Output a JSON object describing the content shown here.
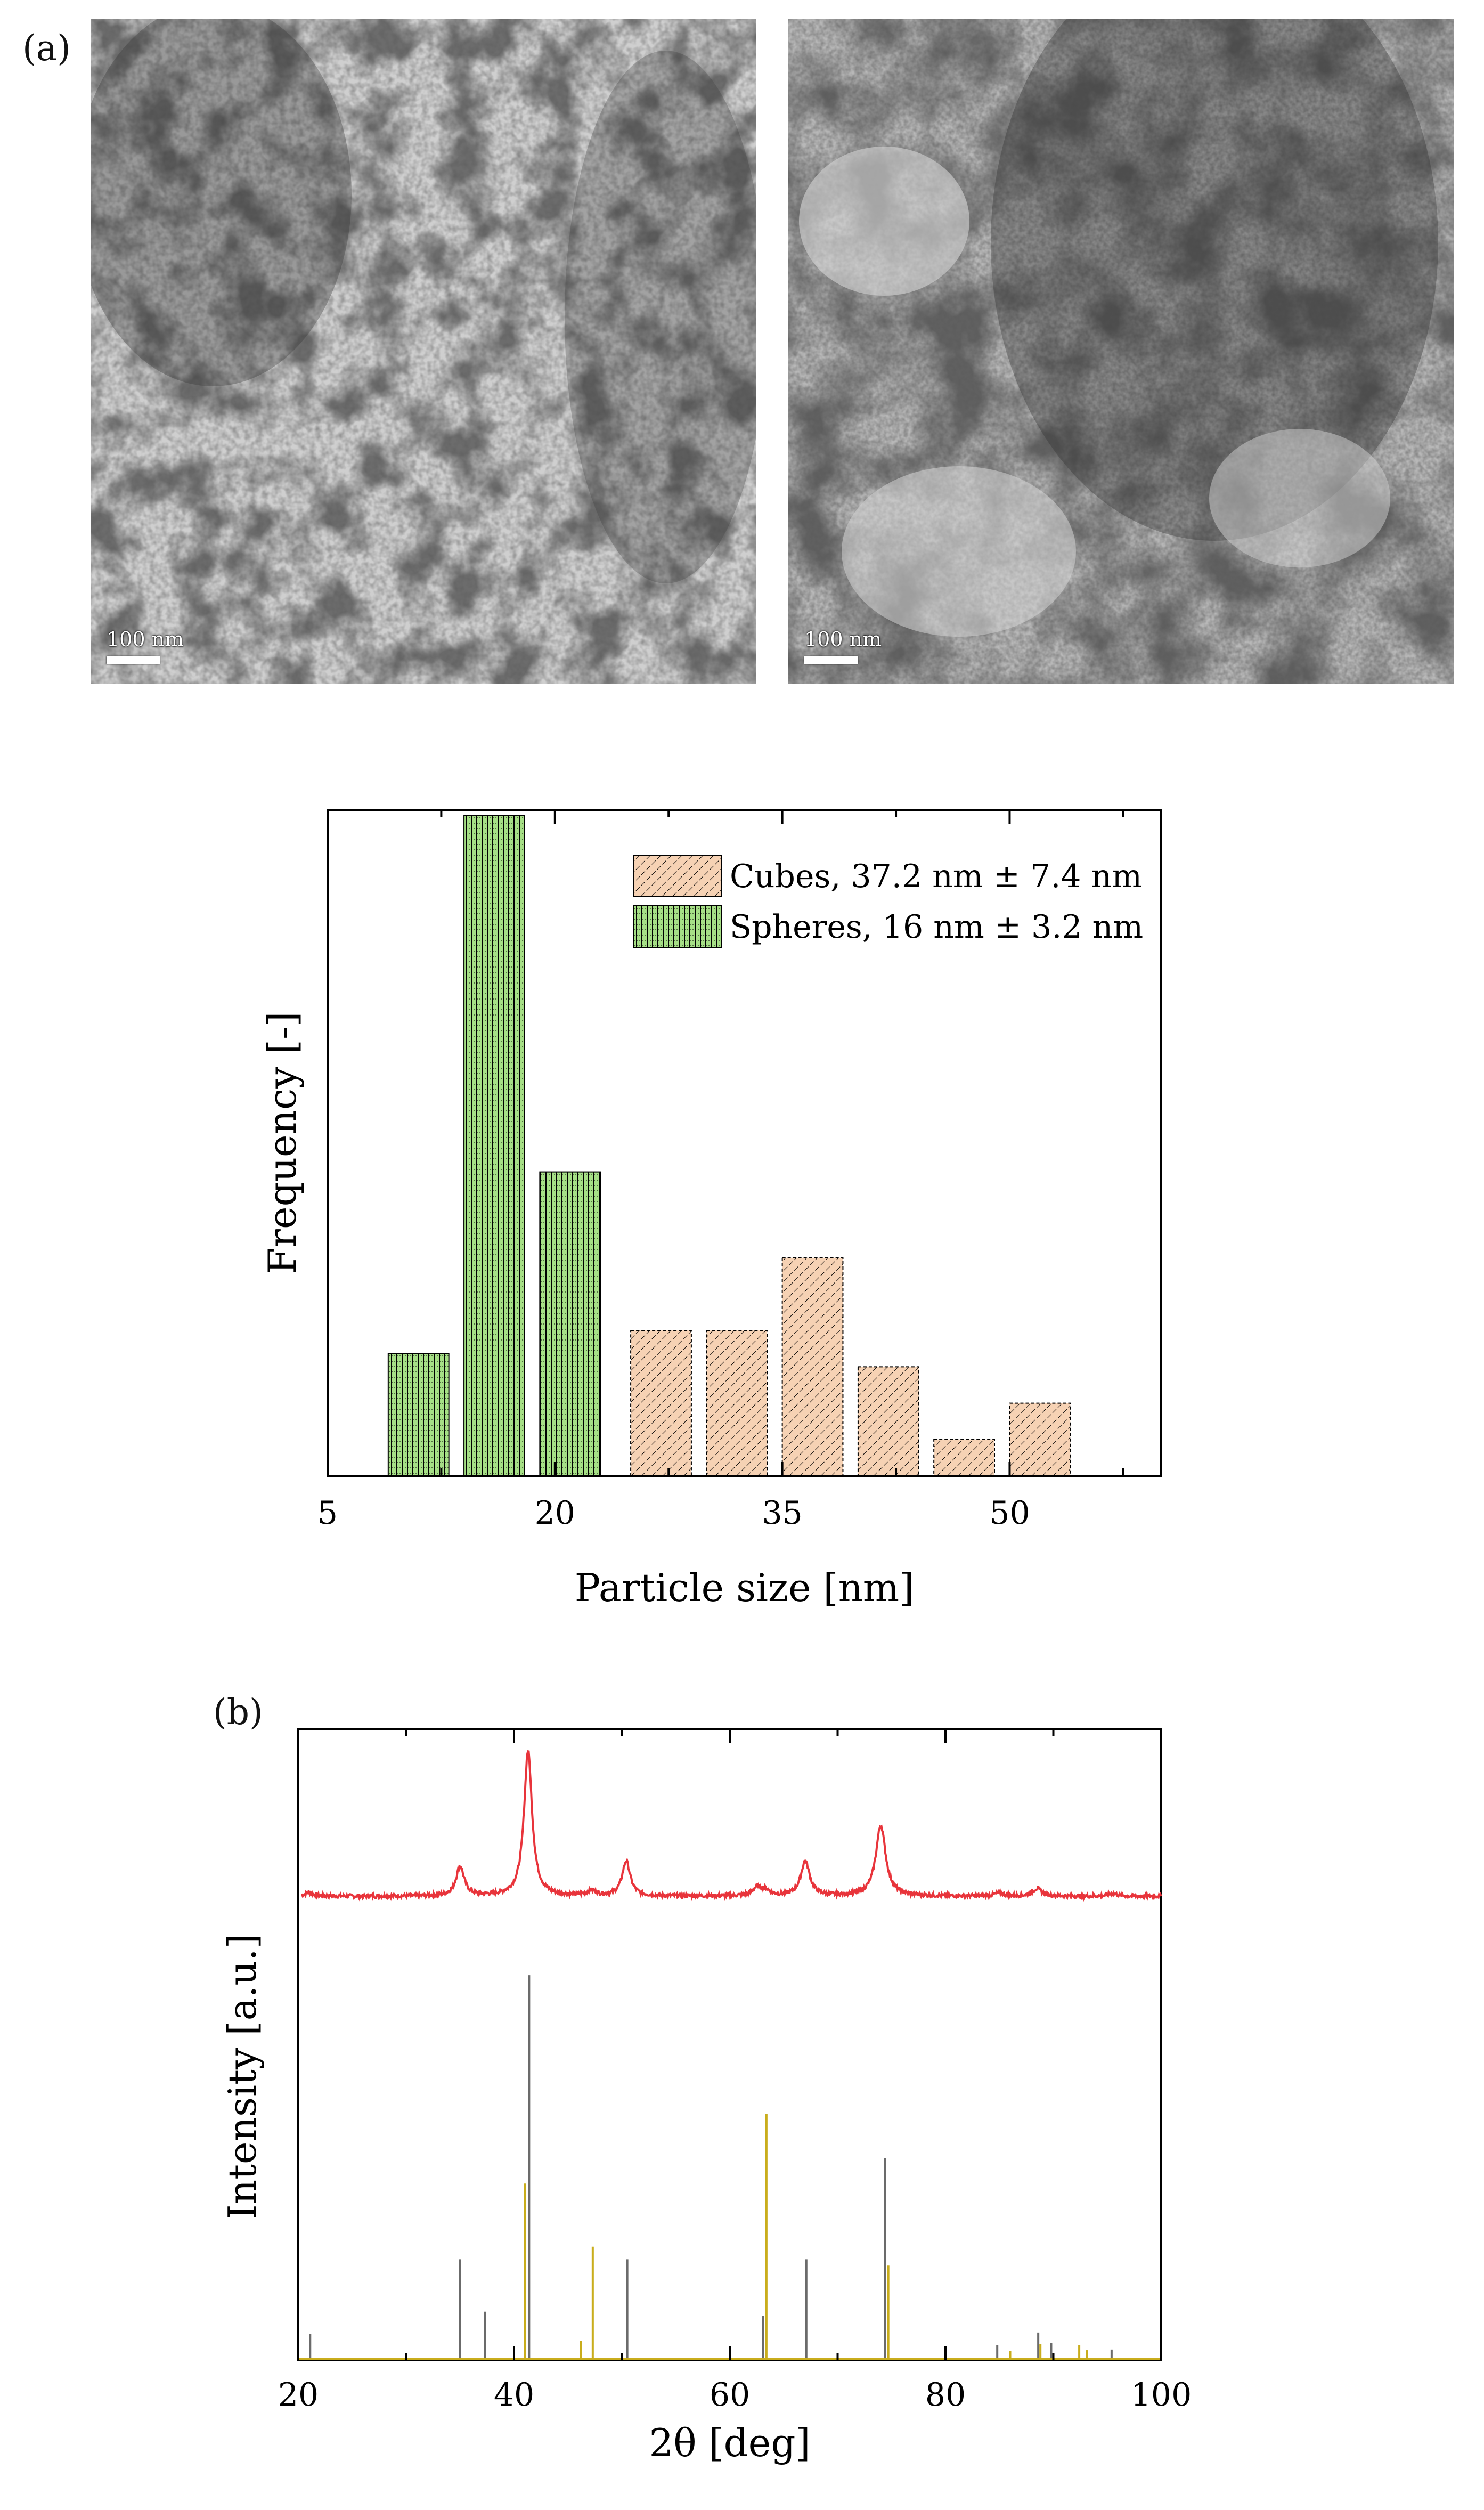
{
  "panel_a": {
    "label": "(a)",
    "images": [
      {
        "name": "tem-image-cubes",
        "scale_label": "100 nm",
        "tone": "#cfcfcf"
      },
      {
        "name": "tem-image-spheres",
        "scale_label": "100 nm",
        "tone": "#a9a9a9"
      }
    ]
  },
  "panel_b": {
    "label": "(b)"
  },
  "chart_data": [
    {
      "type": "bar",
      "title": "",
      "xlabel": "Particle size [nm]",
      "ylabel": "Frequency [-]",
      "xlim": [
        5,
        60
      ],
      "xticks": [
        5,
        20,
        35,
        50
      ],
      "ylim": [
        0,
        1
      ],
      "legend": "top-right",
      "series": [
        {
          "name": "Cubes, 37.2 nm ± 7.4 nm",
          "color": "#f6d2b4",
          "pattern": "diagonal-hatch",
          "bins": [
            [
              25,
              29
            ],
            [
              30,
              34
            ],
            [
              35,
              39
            ],
            [
              40,
              44
            ],
            [
              45,
              49
            ],
            [
              50,
              54
            ]
          ],
          "values": [
            0.22,
            0.22,
            0.33,
            0.165,
            0.055,
            0.11
          ]
        },
        {
          "name": "Spheres, 16 nm ± 3.2 nm",
          "color": "#a6df86",
          "pattern": "vertical-hatch",
          "bins": [
            [
              9,
              13
            ],
            [
              14,
              18
            ],
            [
              19,
              23
            ]
          ],
          "values": [
            0.185,
            1.0,
            0.46
          ]
        }
      ]
    },
    {
      "type": "line",
      "title": "",
      "xlabel": "2θ [deg]",
      "ylabel": "Intensity [a.u.]",
      "xlim": [
        20,
        100
      ],
      "xticks": [
        20,
        40,
        60,
        80,
        100
      ],
      "ylim": [
        0,
        1
      ],
      "measured": {
        "color": "#e8343b",
        "baseline": 0.735,
        "peaks": [
          {
            "x": 21.0,
            "h": 0.006,
            "w": 0.4
          },
          {
            "x": 35.0,
            "h": 0.047,
            "w": 0.45
          },
          {
            "x": 41.3,
            "h": 0.23,
            "w": 0.45
          },
          {
            "x": 47.2,
            "h": 0.008,
            "w": 0.5
          },
          {
            "x": 50.4,
            "h": 0.055,
            "w": 0.45
          },
          {
            "x": 62.5,
            "h": 0.012,
            "w": 0.5
          },
          {
            "x": 63.3,
            "h": 0.009,
            "w": 0.5
          },
          {
            "x": 67.0,
            "h": 0.055,
            "w": 0.5
          },
          {
            "x": 74.0,
            "h": 0.112,
            "w": 0.55
          },
          {
            "x": 85.0,
            "h": 0.005,
            "w": 0.5
          },
          {
            "x": 88.5,
            "h": 0.012,
            "w": 0.5
          },
          {
            "x": 95.5,
            "h": 0.004,
            "w": 0.5
          }
        ]
      },
      "reference_patterns": [
        {
          "color": "#6b6b6b",
          "sticks": [
            [
              21.1,
              0.042
            ],
            [
              35.0,
              0.16
            ],
            [
              37.3,
              0.077
            ],
            [
              41.4,
              0.61
            ],
            [
              50.5,
              0.16
            ],
            [
              63.1,
              0.07
            ],
            [
              67.1,
              0.16
            ],
            [
              74.4,
              0.32
            ],
            [
              84.8,
              0.024
            ],
            [
              88.6,
              0.044
            ],
            [
              89.8,
              0.027
            ],
            [
              95.4,
              0.017
            ]
          ]
        },
        {
          "color": "#c9ad1c",
          "sticks": [
            [
              41.0,
              0.28
            ],
            [
              46.2,
              0.031
            ],
            [
              47.3,
              0.18
            ],
            [
              63.4,
              0.39
            ],
            [
              74.7,
              0.15
            ],
            [
              86.0,
              0.015
            ],
            [
              88.8,
              0.026
            ],
            [
              92.4,
              0.024
            ],
            [
              93.1,
              0.016
            ]
          ]
        }
      ]
    }
  ]
}
